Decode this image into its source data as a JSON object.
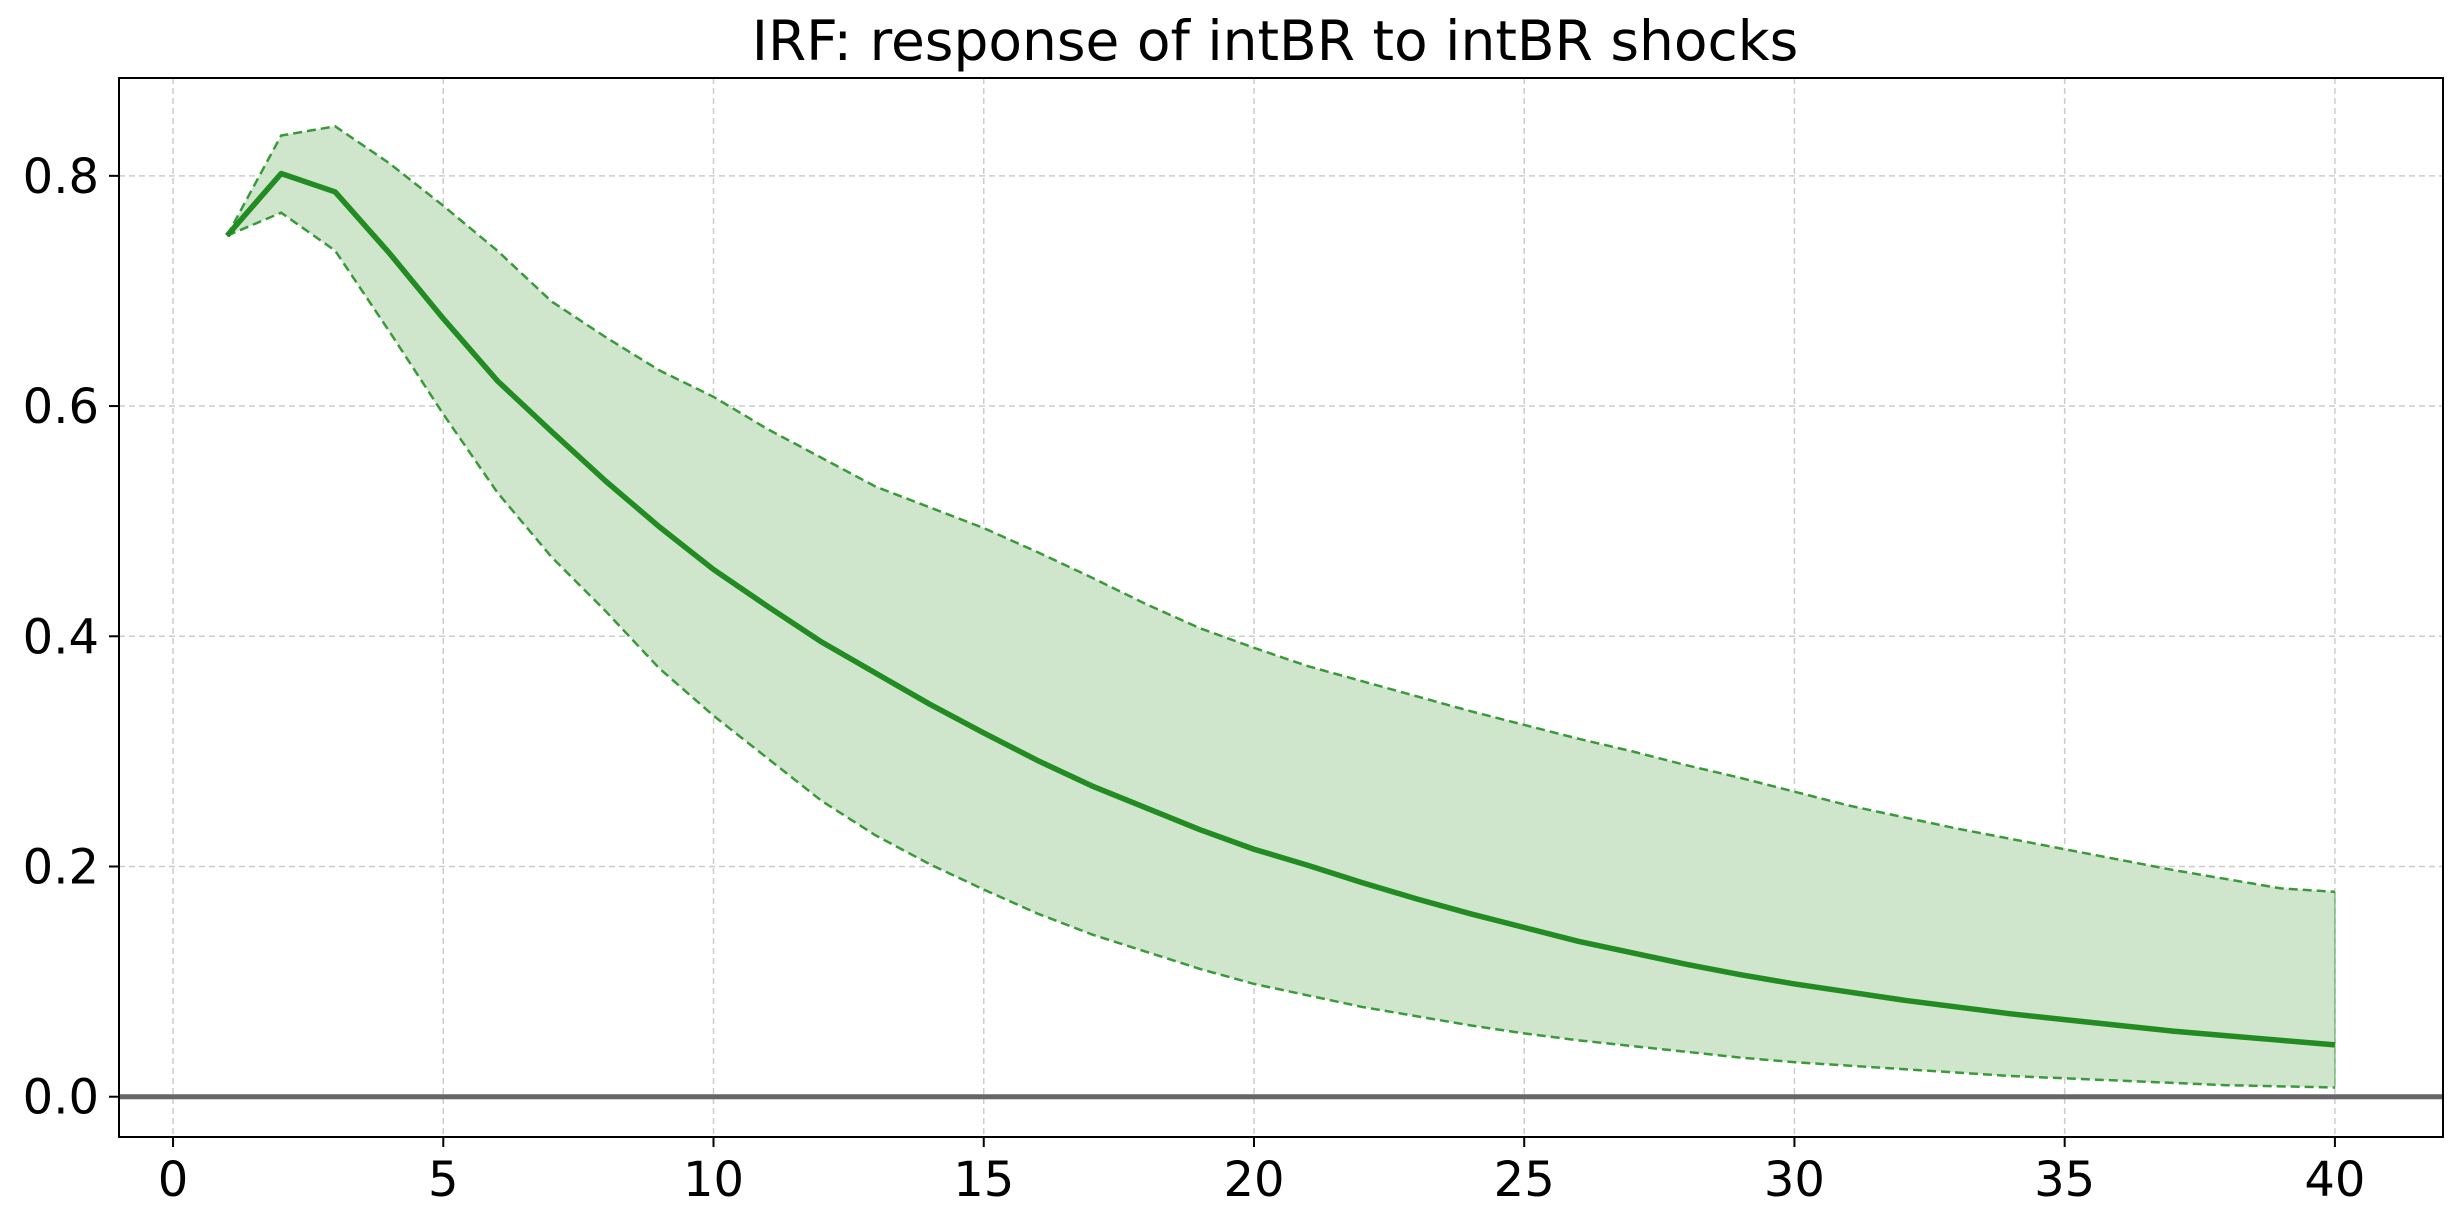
{
  "chart_data": {
    "type": "line",
    "title": "IRF: response of intBR to intBR shocks",
    "xlabel": "",
    "ylabel": "",
    "xlim": [
      -1,
      42
    ],
    "ylim": [
      -0.035,
      0.885
    ],
    "xticks": [
      0,
      5,
      10,
      15,
      20,
      25,
      30,
      35,
      40
    ],
    "yticks": [
      0.0,
      0.2,
      0.4,
      0.6,
      0.8
    ],
    "xtick_labels": [
      "0",
      "5",
      "10",
      "15",
      "20",
      "25",
      "30",
      "35",
      "40"
    ],
    "ytick_labels": [
      "0.0",
      "0.2",
      "0.4",
      "0.6",
      "0.8"
    ],
    "grid": true,
    "zero_line": 0,
    "x": [
      1,
      2,
      3,
      4,
      5,
      6,
      7,
      8,
      9,
      10,
      11,
      12,
      13,
      14,
      15,
      16,
      17,
      18,
      19,
      20,
      21,
      22,
      23,
      24,
      25,
      26,
      27,
      28,
      29,
      30,
      31,
      32,
      33,
      34,
      35,
      36,
      37,
      38,
      39,
      40
    ],
    "series": [
      {
        "role": "response",
        "values": [
          0.748,
          0.802,
          0.786,
          0.733,
          0.676,
          0.622,
          0.578,
          0.535,
          0.495,
          0.458,
          0.426,
          0.395,
          0.368,
          0.341,
          0.316,
          0.292,
          0.27,
          0.251,
          0.232,
          0.215,
          0.201,
          0.186,
          0.172,
          0.159,
          0.147,
          0.135,
          0.125,
          0.115,
          0.106,
          0.098,
          0.091,
          0.084,
          0.078,
          0.072,
          0.067,
          0.062,
          0.057,
          0.053,
          0.049,
          0.045
        ]
      },
      {
        "role": "upper-band",
        "values": [
          0.748,
          0.835,
          0.843,
          0.811,
          0.774,
          0.735,
          0.691,
          0.66,
          0.631,
          0.608,
          0.58,
          0.555,
          0.53,
          0.512,
          0.494,
          0.473,
          0.451,
          0.428,
          0.407,
          0.39,
          0.374,
          0.361,
          0.348,
          0.335,
          0.323,
          0.311,
          0.3,
          0.288,
          0.277,
          0.265,
          0.253,
          0.243,
          0.233,
          0.224,
          0.215,
          0.206,
          0.197,
          0.189,
          0.181,
          0.178
        ]
      },
      {
        "role": "lower-band",
        "values": [
          0.748,
          0.768,
          0.735,
          0.665,
          0.593,
          0.525,
          0.469,
          0.422,
          0.372,
          0.331,
          0.294,
          0.257,
          0.227,
          0.202,
          0.18,
          0.159,
          0.141,
          0.126,
          0.111,
          0.098,
          0.088,
          0.078,
          0.07,
          0.062,
          0.055,
          0.049,
          0.044,
          0.039,
          0.034,
          0.03,
          0.027,
          0.024,
          0.021,
          0.018,
          0.016,
          0.014,
          0.012,
          0.01,
          0.009,
          0.008
        ]
      }
    ],
    "colors": {
      "line": "#228b22",
      "band_fill": "#cfe6cc",
      "band_edge": "#3a9a3a",
      "zero_line": "#666666",
      "grid": "#cccccc",
      "axes": "#000000"
    }
  }
}
